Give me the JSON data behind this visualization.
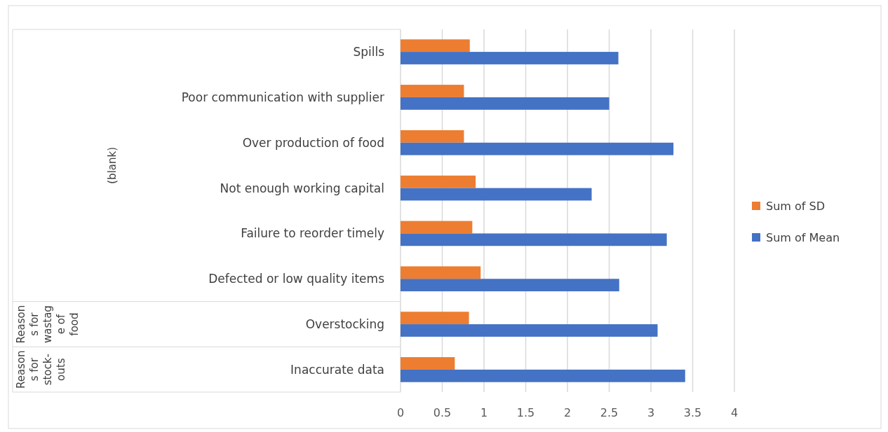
{
  "chart_data": {
    "type": "bar",
    "orientation": "horizontal",
    "categories": [
      "Spills",
      "Poor communication with supplier",
      "Over production of food",
      "Not enough working capital",
      "Failure to reorder timely",
      "Defected or low quality items",
      "Overstocking",
      "Inaccurate data"
    ],
    "series": [
      {
        "name": "Sum of SD",
        "color": "#ed7d31",
        "values": [
          0.83,
          0.76,
          0.76,
          0.9,
          0.86,
          0.96,
          0.82,
          0.65
        ]
      },
      {
        "name": "Sum of Mean",
        "color": "#4472c4",
        "values": [
          2.61,
          2.5,
          3.27,
          2.29,
          3.19,
          2.62,
          3.08,
          3.41
        ]
      }
    ],
    "xlim": [
      0,
      4
    ],
    "xticks": [
      0,
      0.5,
      1,
      1.5,
      2,
      2.5,
      3,
      3.5,
      4
    ],
    "grid": "x",
    "legend": "right",
    "annotations": [
      "(blank)",
      "Reasons for wastage of food",
      "Reasons for stock-outs"
    ]
  }
}
